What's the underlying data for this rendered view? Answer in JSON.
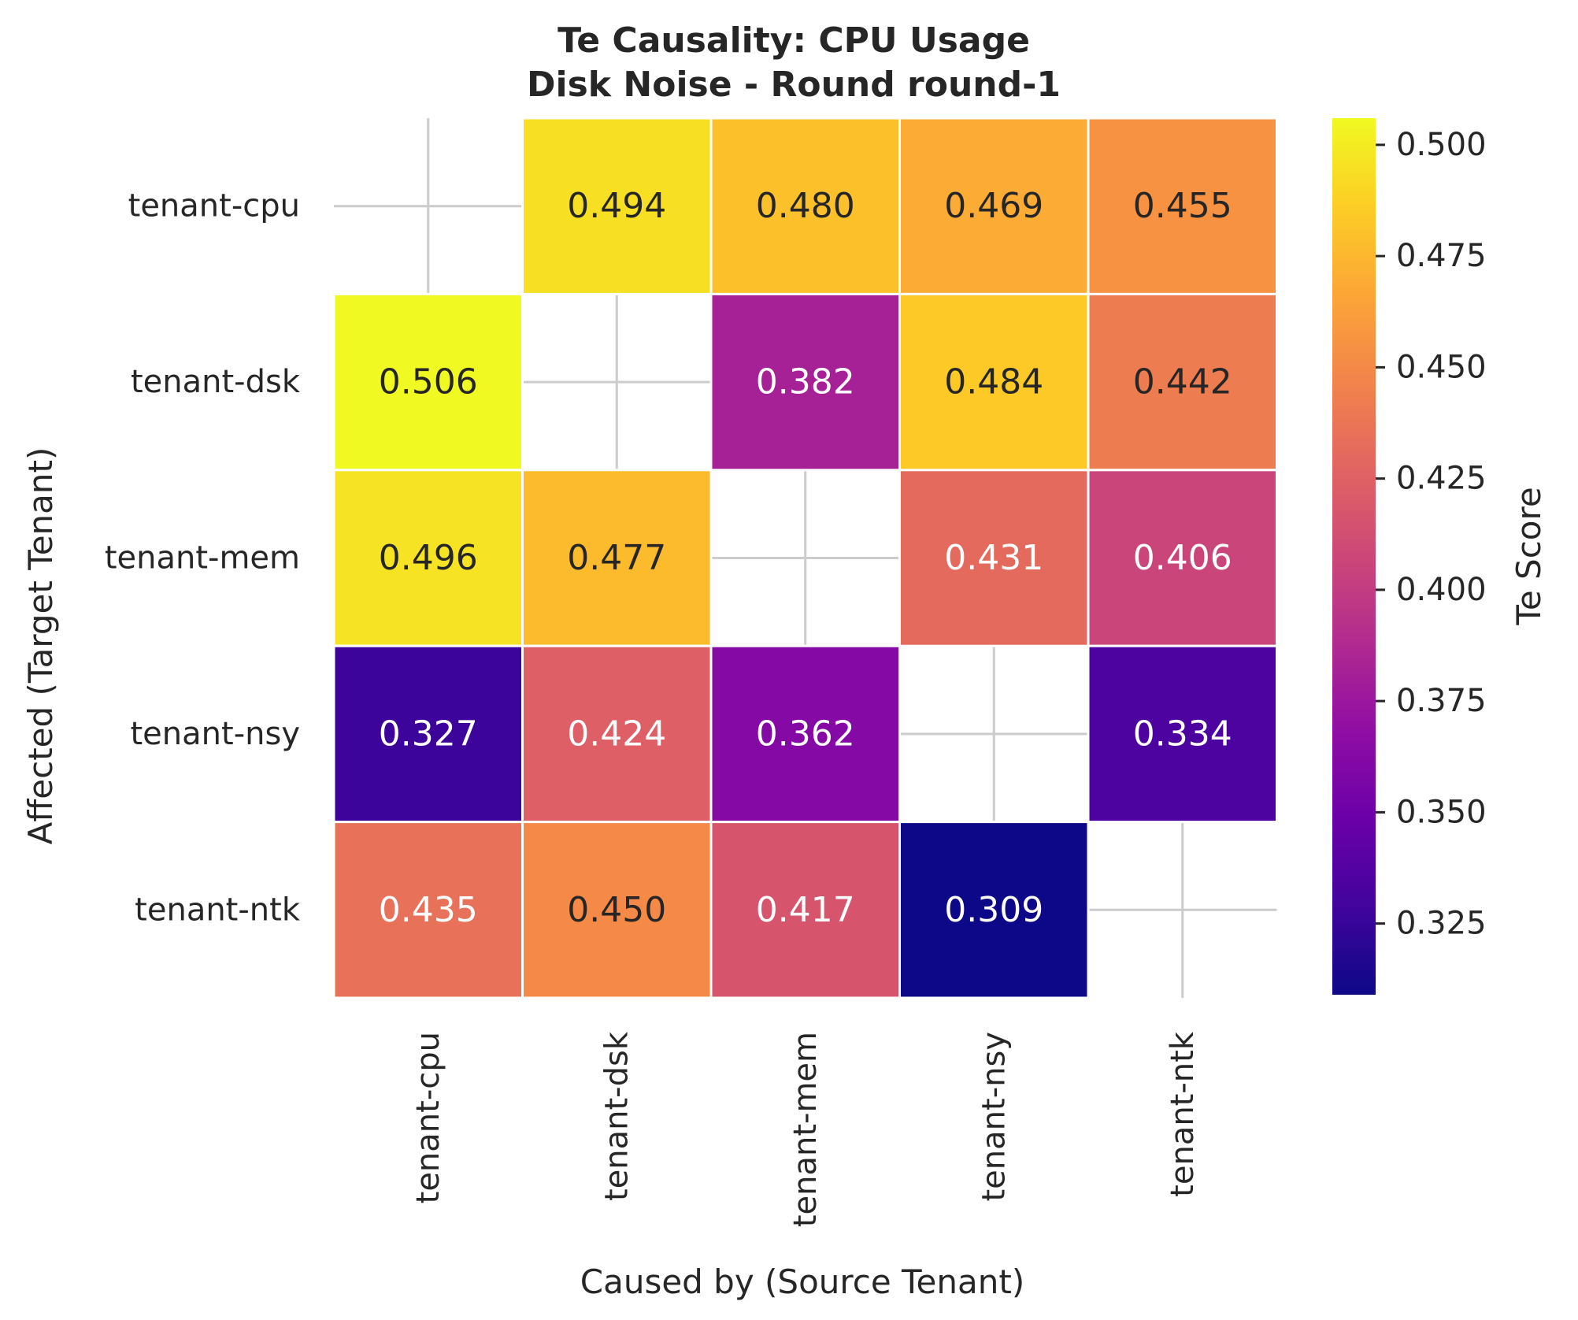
{
  "chart_data": {
    "type": "heatmap",
    "title_line1": "Te Causality: CPU Usage",
    "title_line2": "Disk Noise - Round round-1",
    "xlabel": "Caused by (Source Tenant)",
    "ylabel": "Affected (Target Tenant)",
    "x_categories": [
      "tenant-cpu",
      "tenant-dsk",
      "tenant-mem",
      "tenant-nsy",
      "tenant-ntk"
    ],
    "y_categories": [
      "tenant-cpu",
      "tenant-dsk",
      "tenant-mem",
      "tenant-nsy",
      "tenant-ntk"
    ],
    "values": [
      [
        null,
        0.494,
        0.48,
        0.469,
        0.455
      ],
      [
        0.506,
        null,
        0.382,
        0.484,
        0.442
      ],
      [
        0.496,
        0.477,
        null,
        0.431,
        0.406
      ],
      [
        0.327,
        0.424,
        0.362,
        null,
        0.334
      ],
      [
        0.435,
        0.45,
        0.417,
        0.309,
        null
      ]
    ],
    "colormap": "plasma",
    "grid": true,
    "colorbar": {
      "label": "Te Score",
      "vmin": 0.309,
      "vmax": 0.506,
      "ticks": [
        0.325,
        0.35,
        0.375,
        0.4,
        0.425,
        0.45,
        0.475,
        0.5
      ],
      "tick_labels": [
        "0.325",
        "0.350",
        "0.375",
        "0.400",
        "0.425",
        "0.450",
        "0.475",
        "0.500"
      ]
    }
  }
}
